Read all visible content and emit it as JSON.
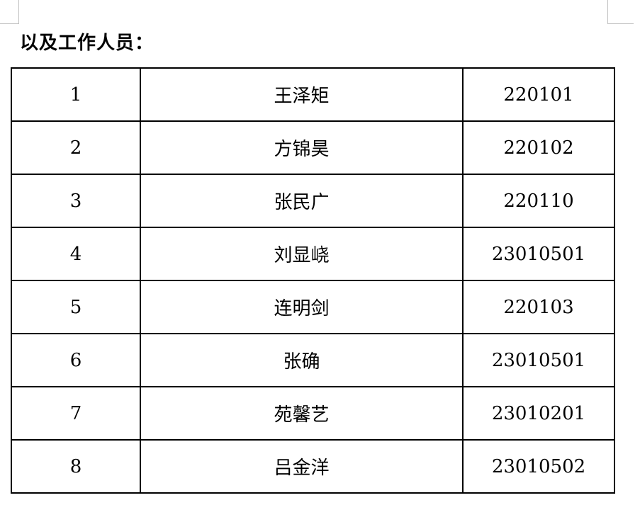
{
  "page": {
    "title": "以及工作人员："
  },
  "table": {
    "rows": [
      {
        "no": "1",
        "name": "王泽矩",
        "id": "220101"
      },
      {
        "no": "2",
        "name": "方锦昊",
        "id": "220102"
      },
      {
        "no": "3",
        "name": "张民广",
        "id": "220110"
      },
      {
        "no": "4",
        "name": "刘显峣",
        "id": "23010501"
      },
      {
        "no": "5",
        "name": "连明剑",
        "id": "220103"
      },
      {
        "no": "6",
        "name": "张确",
        "id": "23010501"
      },
      {
        "no": "7",
        "name": "苑馨艺",
        "id": "23010201"
      },
      {
        "no": "8",
        "name": "吕金洋",
        "id": "23010502"
      }
    ]
  },
  "colors": {
    "border": "#000000",
    "artifact_gridline": "#c0c0c0",
    "text": "#000000",
    "background": "#ffffff"
  }
}
